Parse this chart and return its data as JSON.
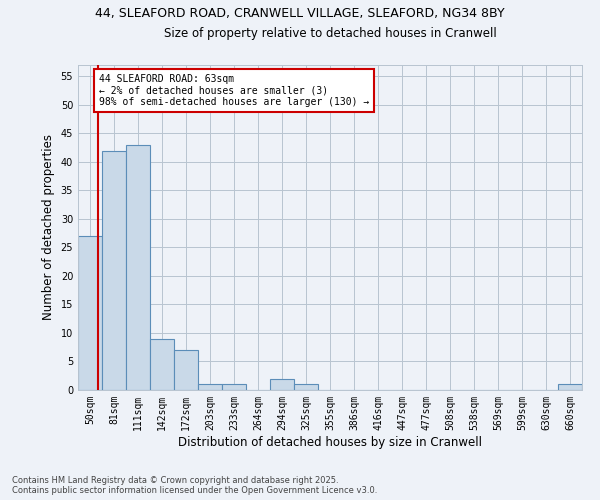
{
  "title1": "44, SLEAFORD ROAD, CRANWELL VILLAGE, SLEAFORD, NG34 8BY",
  "title2": "Size of property relative to detached houses in Cranwell",
  "xlabel": "Distribution of detached houses by size in Cranwell",
  "ylabel": "Number of detached properties",
  "bar_labels": [
    "50sqm",
    "81sqm",
    "111sqm",
    "142sqm",
    "172sqm",
    "203sqm",
    "233sqm",
    "264sqm",
    "294sqm",
    "325sqm",
    "355sqm",
    "386sqm",
    "416sqm",
    "447sqm",
    "477sqm",
    "508sqm",
    "538sqm",
    "569sqm",
    "599sqm",
    "630sqm",
    "660sqm"
  ],
  "bar_values": [
    27,
    42,
    43,
    9,
    7,
    1,
    1,
    0,
    2,
    1,
    0,
    0,
    0,
    0,
    0,
    0,
    0,
    0,
    0,
    0,
    1
  ],
  "bar_color": "#c9d9e8",
  "bar_edge_color": "#5b8db8",
  "annotation_text_line1": "44 SLEAFORD ROAD: 63sqm",
  "annotation_text_line2": "← 2% of detached houses are smaller (3)",
  "annotation_text_line3": "98% of semi-detached houses are larger (130) →",
  "annotation_box_color": "#ffffff",
  "annotation_box_edge": "#cc0000",
  "vline_color": "#cc0000",
  "vline_x": 0.35,
  "ylim": [
    0,
    57
  ],
  "yticks": [
    0,
    5,
    10,
    15,
    20,
    25,
    30,
    35,
    40,
    45,
    50,
    55
  ],
  "grid_color": "#b8c4d0",
  "bg_color": "#eef2f8",
  "footer1": "Contains HM Land Registry data © Crown copyright and database right 2025.",
  "footer2": "Contains public sector information licensed under the Open Government Licence v3.0."
}
